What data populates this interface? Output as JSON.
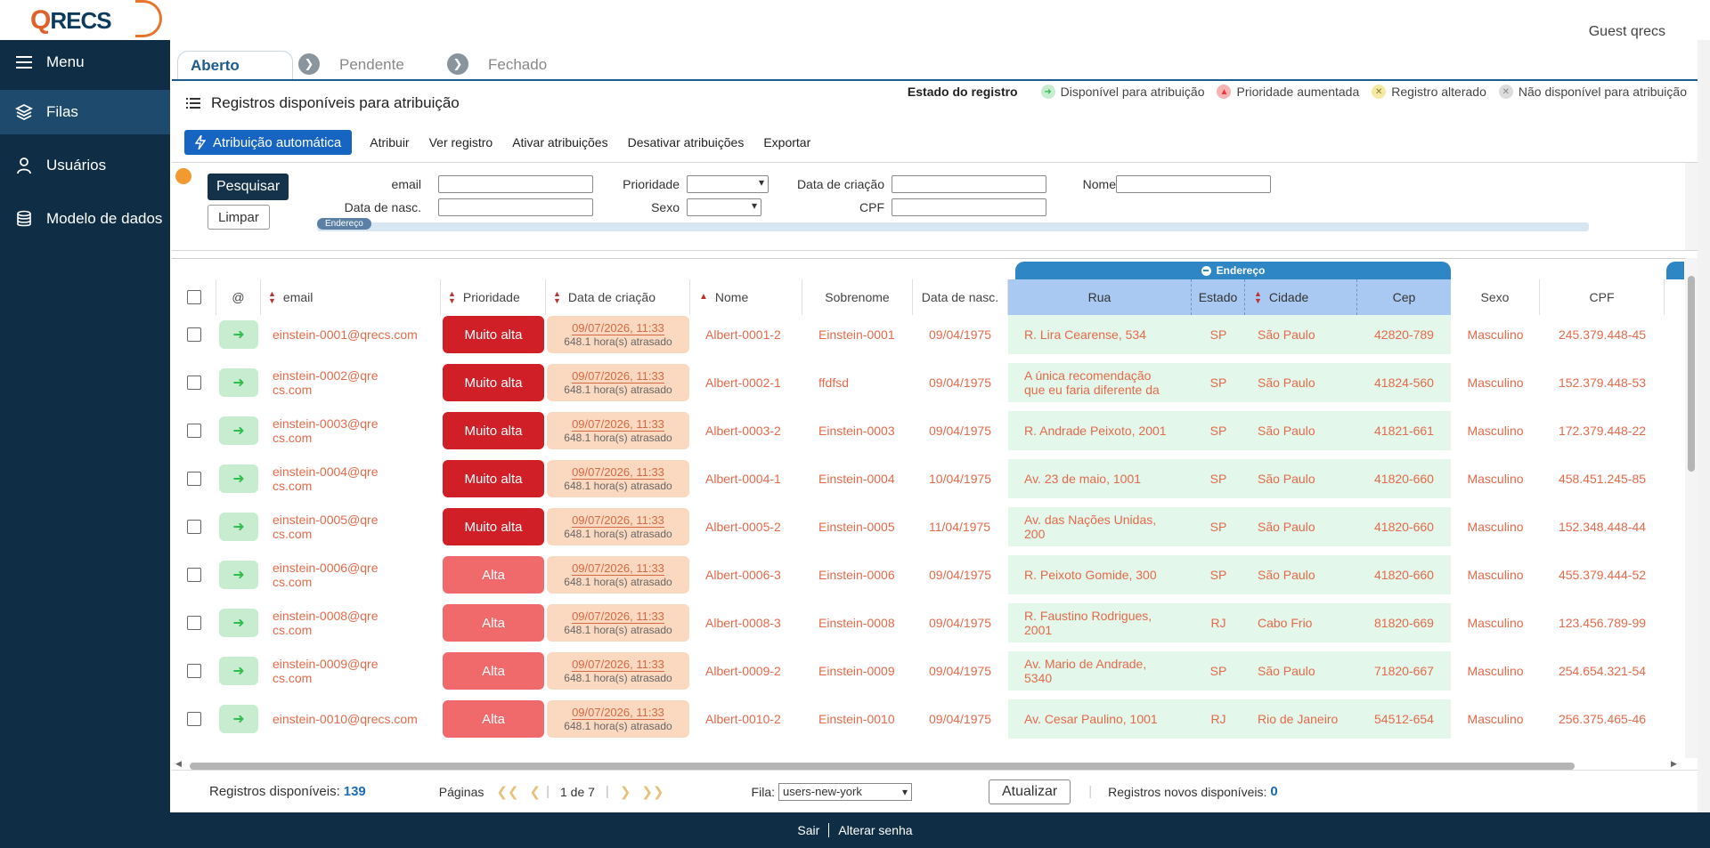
{
  "header": {
    "logo_q": "Q",
    "logo_recs": "RECS",
    "user": "Guest qrecs"
  },
  "sidebar": {
    "menu_label": "Menu",
    "items": [
      {
        "label": "Filas",
        "icon": "layers-icon",
        "active": true
      },
      {
        "label": "Usuários",
        "icon": "user-icon",
        "active": false
      },
      {
        "label": "Modelo de dados",
        "icon": "database-icon",
        "active": false
      }
    ]
  },
  "tabs": [
    {
      "label": "Aberto",
      "active": true
    },
    {
      "label": "Pendente",
      "active": false
    },
    {
      "label": "Fechado",
      "active": false
    }
  ],
  "section_title": "Registros disponíveis para atribuição",
  "legend": {
    "title": "Estado do registro",
    "items": [
      {
        "label": "Disponível para atribuição",
        "color": "#2ebd4f"
      },
      {
        "label": "Prioridade aumentada",
        "color": "#e3383e"
      },
      {
        "label": "Registro alterado",
        "color": "#e4d66b"
      },
      {
        "label": "Não disponível para atribuição",
        "color": "#c9c9c9"
      }
    ]
  },
  "toolbar": {
    "auto_assign": "Atribuição automática",
    "assign": "Atribuir",
    "view": "Ver registro",
    "activate": "Ativar atribuições",
    "deactivate": "Desativar atribuições",
    "export": "Exportar"
  },
  "filters": {
    "search_button": "Pesquisar",
    "clear_button": "Limpar",
    "email": "email",
    "prioridade": "Prioridade",
    "data_criacao": "Data de criação",
    "nome": "Nome",
    "data_nasc": "Data de nasc.",
    "sexo": "Sexo",
    "cpf": "CPF",
    "endereco_tag": "Endereço"
  },
  "table": {
    "group_label": "Endereço",
    "headers": {
      "at": "@",
      "email": "email",
      "prioridade": "Prioridade",
      "data_criacao": "Data de criação",
      "nome": "Nome",
      "sobrenome": "Sobrenome",
      "data_nasc": "Data de nasc.",
      "rua": "Rua",
      "estado": "Estado",
      "cidade": "Cidade",
      "cep": "Cep",
      "sexo": "Sexo",
      "cpf": "CPF"
    },
    "rows": [
      {
        "email": "einstein-0001@qrecs.com",
        "prio": "Muito alta",
        "date": "09/07/2026, 11:33",
        "late": "648.1 hora(s) atrasado",
        "nome": "Albert-0001-2",
        "sobrenome": "Einstein-0001",
        "nasc": "09/04/1975",
        "rua": "R. Lira Cearense, 534",
        "estado": "SP",
        "cidade": "São Paulo",
        "cep": "42820-789",
        "sexo": "Masculino",
        "cpf": "245.379.448-45"
      },
      {
        "email": "einstein-0002@qrecs.com",
        "prio": "Muito alta",
        "date": "09/07/2026, 11:33",
        "late": "648.1 hora(s) atrasado",
        "nome": "Albert-0002-1",
        "sobrenome": "ffdfsd",
        "nasc": "09/04/1975",
        "rua": "A única recomendação que eu faria diferente da",
        "estado": "SP",
        "cidade": "São Paulo",
        "cep": "41824-560",
        "sexo": "Masculino",
        "cpf": "152.379.448-53"
      },
      {
        "email": "einstein-0003@qrecs.com",
        "prio": "Muito alta",
        "date": "09/07/2026, 11:33",
        "late": "648.1 hora(s) atrasado",
        "nome": "Albert-0003-2",
        "sobrenome": "Einstein-0003",
        "nasc": "09/04/1975",
        "rua": "R. Andrade Peixoto, 2001",
        "estado": "SP",
        "cidade": "São Paulo",
        "cep": "41821-661",
        "sexo": "Masculino",
        "cpf": "172.379.448-22"
      },
      {
        "email": "einstein-0004@qrecs.com",
        "prio": "Muito alta",
        "date": "09/07/2026, 11:33",
        "late": "648.1 hora(s) atrasado",
        "nome": "Albert-0004-1",
        "sobrenome": "Einstein-0004",
        "nasc": "10/04/1975",
        "rua": "Av. 23 de maio, 1001",
        "estado": "SP",
        "cidade": "São Paulo",
        "cep": "41820-660",
        "sexo": "Masculino",
        "cpf": "458.451.245-85"
      },
      {
        "email": "einstein-0005@qrecs.com",
        "prio": "Muito alta",
        "date": "09/07/2026, 11:33",
        "late": "648.1 hora(s) atrasado",
        "nome": "Albert-0005-2",
        "sobrenome": "Einstein-0005",
        "nasc": "11/04/1975",
        "rua": "Av. das Nações Unidas, 200",
        "estado": "SP",
        "cidade": "São Paulo",
        "cep": "41820-660",
        "sexo": "Masculino",
        "cpf": "152.348.448-44"
      },
      {
        "email": "einstein-0006@qrecs.com",
        "prio": "Alta",
        "date": "09/07/2026, 11:33",
        "late": "648.1 hora(s) atrasado",
        "nome": "Albert-0006-3",
        "sobrenome": "Einstein-0006",
        "nasc": "09/04/1975",
        "rua": "R. Peixoto Gomide, 300",
        "estado": "SP",
        "cidade": "São Paulo",
        "cep": "41820-660",
        "sexo": "Masculino",
        "cpf": "455.379.444-52"
      },
      {
        "email": "einstein-0008@qrecs.com",
        "prio": "Alta",
        "date": "09/07/2026, 11:33",
        "late": "648.1 hora(s) atrasado",
        "nome": "Albert-0008-3",
        "sobrenome": "Einstein-0008",
        "nasc": "09/04/1975",
        "rua": "R. Faustino Rodrigues, 2001",
        "estado": "RJ",
        "cidade": "Cabo Frio",
        "cep": "81820-669",
        "sexo": "Masculino",
        "cpf": "123.456.789-99"
      },
      {
        "email": "einstein-0009@qrecs.com",
        "prio": "Alta",
        "date": "09/07/2026, 11:33",
        "late": "648.1 hora(s) atrasado",
        "nome": "Albert-0009-2",
        "sobrenome": "Einstein-0009",
        "nasc": "09/04/1975",
        "rua": "Av. Mario de Andrade, 5340",
        "estado": "SP",
        "cidade": "São Paulo",
        "cep": "71820-667",
        "sexo": "Masculino",
        "cpf": "254.654.321-54"
      },
      {
        "email": "einstein-0010@qrecs.com",
        "prio": "Alta",
        "date": "09/07/2026, 11:33",
        "late": "648.1 hora(s) atrasado",
        "nome": "Albert-0010-2",
        "sobrenome": "Einstein-0010",
        "nasc": "09/04/1975",
        "rua": "Av. Cesar Paulino, 1001",
        "estado": "RJ",
        "cidade": "Rio de Janeiro",
        "cep": "54512-654",
        "sexo": "Masculino",
        "cpf": "256.375.465-46"
      }
    ]
  },
  "status": {
    "available_label": "Registros disponíveis:",
    "available_count": "139",
    "pages_label": "Páginas",
    "page_info": "1 de 7",
    "fila_label": "Fila:",
    "fila_value": "users-new-york",
    "refresh": "Atualizar",
    "new_label": "Registros novos disponíveis:",
    "new_count": "0"
  },
  "footer": {
    "logout": "Sair",
    "change_password": "Alterar senha"
  }
}
